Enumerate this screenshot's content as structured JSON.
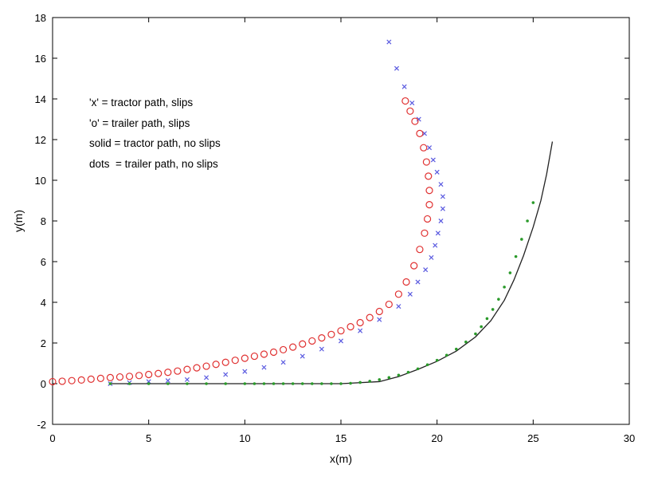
{
  "chart_data": {
    "type": "scatter",
    "title": "",
    "xlabel": "x(m)",
    "ylabel": "y(m)",
    "xlim": [
      0,
      30
    ],
    "ylim": [
      -2,
      18
    ],
    "xticks": [
      0,
      5,
      10,
      15,
      20,
      25,
      30
    ],
    "yticks": [
      -2,
      0,
      2,
      4,
      6,
      8,
      10,
      12,
      14,
      16,
      18
    ],
    "grid": false,
    "annotations": [
      "'x' = tractor path, slips",
      "'o' = trailer path, slips",
      "solid = tractor path, no slips",
      "dots  = trailer path, no slips"
    ],
    "series": [
      {
        "name": "tractor path, slips",
        "marker": "x",
        "color": "#5a5ae0",
        "x": [
          3.0,
          4.0,
          5.0,
          6.0,
          7.0,
          8.0,
          9.0,
          10.0,
          11.0,
          12.0,
          13.0,
          14.0,
          15.0,
          16.0,
          17.0,
          18.0,
          18.6,
          19.0,
          19.4,
          19.7,
          19.9,
          20.05,
          20.2,
          20.3,
          20.3,
          20.2,
          20.0,
          19.8,
          19.6,
          19.35,
          19.05,
          18.7,
          18.3,
          17.9,
          17.5
        ],
        "y": [
          0.0,
          0.05,
          0.1,
          0.15,
          0.2,
          0.3,
          0.45,
          0.6,
          0.8,
          1.05,
          1.35,
          1.7,
          2.1,
          2.6,
          3.15,
          3.8,
          4.4,
          5.0,
          5.6,
          6.2,
          6.8,
          7.4,
          8.0,
          8.6,
          9.2,
          9.8,
          10.4,
          11.0,
          11.6,
          12.3,
          13.0,
          13.8,
          14.6,
          15.5,
          16.8
        ]
      },
      {
        "name": "trailer path, slips",
        "marker": "o",
        "color": "#e03030",
        "x": [
          0.0,
          0.5,
          1.0,
          1.5,
          2.0,
          2.5,
          3.0,
          3.5,
          4.0,
          4.5,
          5.0,
          5.5,
          6.0,
          6.5,
          7.0,
          7.5,
          8.0,
          8.5,
          9.0,
          9.5,
          10.0,
          10.5,
          11.0,
          11.5,
          12.0,
          12.5,
          13.0,
          13.5,
          14.0,
          14.5,
          15.0,
          15.5,
          16.0,
          16.5,
          17.0,
          17.5,
          18.0,
          18.4,
          18.8,
          19.1,
          19.35,
          19.5,
          19.6,
          19.6,
          19.55,
          19.45,
          19.3,
          19.1,
          18.85,
          18.6,
          18.35
        ],
        "y": [
          0.1,
          0.12,
          0.15,
          0.18,
          0.22,
          0.26,
          0.3,
          0.33,
          0.36,
          0.4,
          0.45,
          0.5,
          0.56,
          0.62,
          0.7,
          0.78,
          0.86,
          0.95,
          1.05,
          1.15,
          1.25,
          1.35,
          1.45,
          1.55,
          1.67,
          1.8,
          1.95,
          2.1,
          2.25,
          2.42,
          2.6,
          2.8,
          3.0,
          3.25,
          3.55,
          3.9,
          4.4,
          5.0,
          5.8,
          6.6,
          7.4,
          8.1,
          8.8,
          9.5,
          10.2,
          10.9,
          11.6,
          12.3,
          12.9,
          13.4,
          13.9
        ]
      },
      {
        "name": "tractor path, no slips",
        "marker": "line",
        "color": "#222222",
        "x": [
          3.0,
          6.0,
          9.0,
          12.0,
          15.0,
          17.0,
          18.0,
          19.0,
          20.0,
          21.0,
          22.0,
          22.8,
          23.5,
          24.0,
          24.5,
          25.0,
          25.4,
          25.7,
          26.0
        ],
        "y": [
          0.0,
          0.0,
          0.0,
          0.0,
          0.0,
          0.1,
          0.35,
          0.7,
          1.1,
          1.6,
          2.3,
          3.1,
          4.1,
          5.1,
          6.3,
          7.7,
          9.0,
          10.3,
          11.9
        ]
      },
      {
        "name": "trailer path, no slips",
        "marker": "dot",
        "color": "#2a9a2a",
        "x": [
          3.0,
          4.0,
          5.0,
          6.0,
          7.0,
          8.0,
          9.0,
          10.0,
          10.5,
          11.0,
          11.5,
          12.0,
          12.5,
          13.0,
          13.5,
          14.0,
          14.5,
          15.0,
          15.5,
          16.0,
          16.5,
          17.0,
          17.5,
          18.0,
          18.5,
          19.0,
          19.5,
          20.0,
          20.5,
          21.0,
          21.5,
          22.0,
          22.3,
          22.6,
          22.9,
          23.2,
          23.5,
          23.8,
          24.1,
          24.4,
          24.7,
          25.0
        ],
        "y": [
          0.0,
          0.0,
          0.0,
          0.0,
          0.0,
          0.0,
          0.0,
          0.0,
          0.0,
          0.0,
          0.0,
          0.0,
          0.0,
          0.0,
          0.0,
          0.0,
          0.0,
          0.0,
          0.02,
          0.06,
          0.12,
          0.2,
          0.3,
          0.42,
          0.56,
          0.73,
          0.93,
          1.15,
          1.4,
          1.7,
          2.05,
          2.45,
          2.8,
          3.2,
          3.65,
          4.15,
          4.75,
          5.45,
          6.25,
          7.1,
          8.0,
          8.9
        ]
      }
    ]
  }
}
